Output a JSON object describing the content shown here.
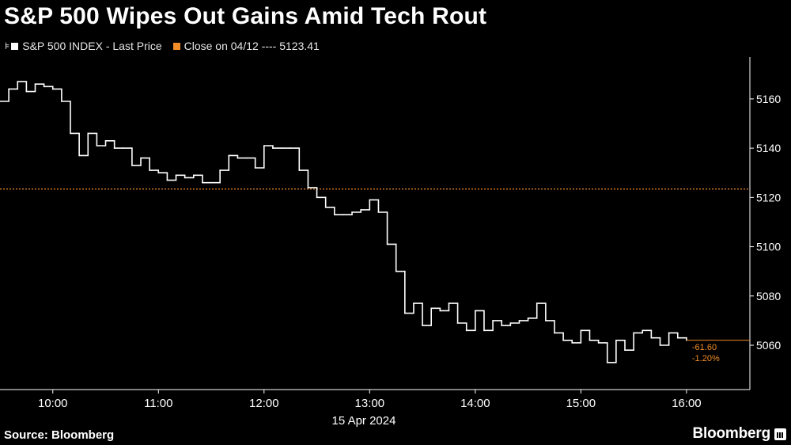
{
  "title": "S&P 500 Wipes Out Gains Amid Tech Rout",
  "legend": {
    "series_label": "S&P 500 INDEX - Last Price",
    "close_label": "Close on 04/12 ---- 5123.41"
  },
  "source": "Source: Bloomberg",
  "brand": "Bloomberg",
  "colors": {
    "price": "#ffffff",
    "close": "#f28c28",
    "axis": "#ffffff",
    "background": "#000000"
  },
  "chart_data": {
    "type": "line",
    "title": "S&P 500 Wipes Out Gains Amid Tech Rout",
    "xlabel": "15 Apr 2024",
    "ylabel": "",
    "x_ticks": [
      "10:00",
      "11:00",
      "12:00",
      "13:00",
      "14:00",
      "15:00",
      "16:00"
    ],
    "y_ticks": [
      5060,
      5080,
      5100,
      5120,
      5140,
      5160
    ],
    "xlim": [
      "09:30",
      "16:36"
    ],
    "ylim": [
      5042,
      5177
    ],
    "grid": false,
    "legend_position": "top-left",
    "reference_line": {
      "name": "Close on 04/12",
      "value": 5123.41
    },
    "change_annotation": {
      "absolute": "-61.60",
      "percent": "-1.20%"
    },
    "series": [
      {
        "name": "S&P 500 INDEX - Last Price",
        "x": [
          "09:30",
          "09:35",
          "09:40",
          "09:45",
          "09:50",
          "09:55",
          "10:00",
          "10:05",
          "10:10",
          "10:15",
          "10:20",
          "10:25",
          "10:30",
          "10:35",
          "10:40",
          "10:45",
          "10:50",
          "10:55",
          "11:00",
          "11:05",
          "11:10",
          "11:15",
          "11:20",
          "11:25",
          "11:30",
          "11:35",
          "11:40",
          "11:45",
          "11:50",
          "11:55",
          "12:00",
          "12:05",
          "12:10",
          "12:15",
          "12:20",
          "12:25",
          "12:30",
          "12:35",
          "12:40",
          "12:45",
          "12:50",
          "12:55",
          "13:00",
          "13:05",
          "13:10",
          "13:15",
          "13:20",
          "13:25",
          "13:30",
          "13:35",
          "13:40",
          "13:45",
          "13:50",
          "13:55",
          "14:00",
          "14:05",
          "14:10",
          "14:15",
          "14:20",
          "14:25",
          "14:30",
          "14:35",
          "14:40",
          "14:45",
          "14:50",
          "14:55",
          "15:00",
          "15:05",
          "15:10",
          "15:15",
          "15:20",
          "15:25",
          "15:30",
          "15:35",
          "15:40",
          "15:45",
          "15:50",
          "15:55",
          "16:00"
        ],
        "y": [
          5159,
          5164,
          5167,
          5163,
          5166,
          5165,
          5164,
          5159,
          5146,
          5137,
          5146,
          5141,
          5143,
          5140,
          5140,
          5133,
          5136,
          5131,
          5130,
          5127,
          5129,
          5128,
          5129,
          5126,
          5126,
          5131,
          5137,
          5136,
          5136,
          5132,
          5141,
          5140,
          5140,
          5140,
          5131,
          5124,
          5120,
          5116,
          5113,
          5113,
          5114,
          5115,
          5119,
          5114,
          5101,
          5090,
          5073,
          5077,
          5068,
          5075,
          5074,
          5077,
          5069,
          5066,
          5074,
          5066,
          5070,
          5068,
          5069,
          5070,
          5071,
          5077,
          5070,
          5065,
          5062,
          5061,
          5066,
          5062,
          5061,
          5053,
          5062,
          5058,
          5065,
          5066,
          5063,
          5060,
          5065,
          5063,
          5062
        ]
      }
    ]
  }
}
